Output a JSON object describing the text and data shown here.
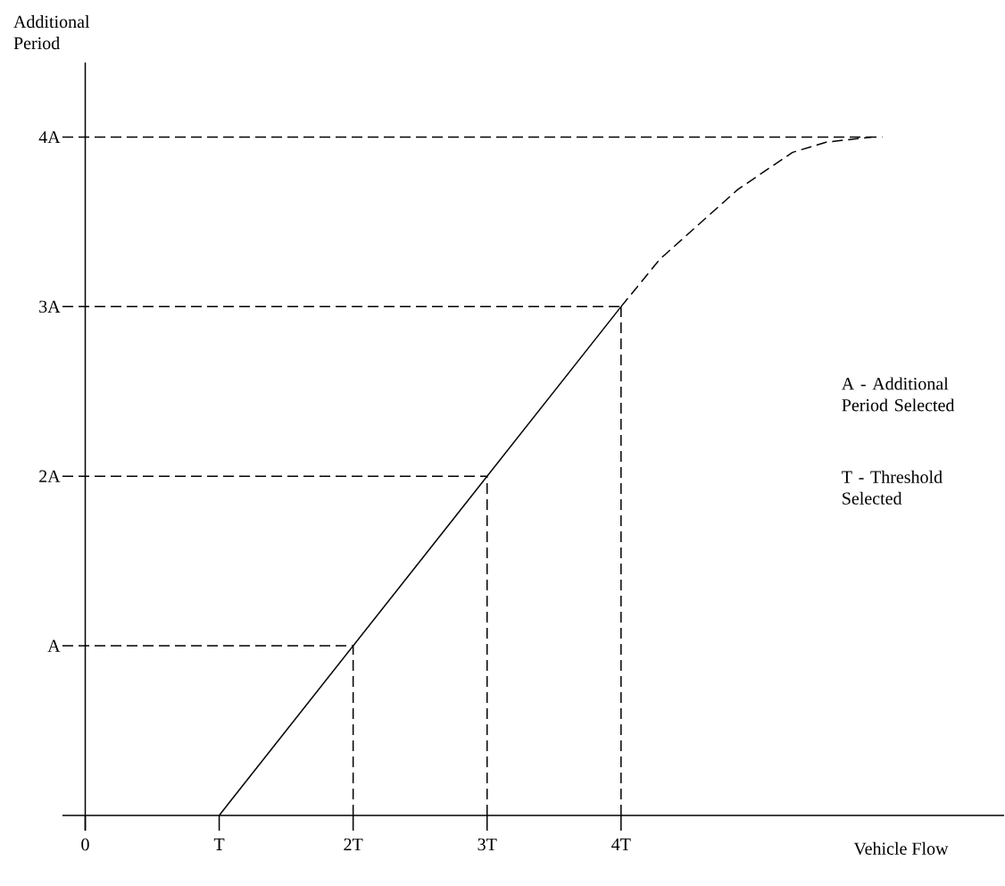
{
  "chart_data": {
    "type": "line",
    "xlabel": "Vehicle Flow",
    "ylabel": "Additional Period",
    "xlim": [
      -0.17,
      6.86
    ],
    "ylim": [
      -0.09,
      4.44
    ],
    "xticks": [
      0,
      {
        "value": 1,
        "label": "T"
      },
      {
        "value": 2,
        "label": "2T"
      },
      {
        "value": 3,
        "label": "3T"
      },
      {
        "value": 4,
        "label": "4T"
      }
    ],
    "yticks": [
      {
        "value": 1,
        "label": "A"
      },
      {
        "value": 2,
        "label": "2A"
      },
      {
        "value": 3,
        "label": "3A"
      },
      {
        "value": 4,
        "label": "4A"
      }
    ],
    "grid": false,
    "marker": "none",
    "series": [
      {
        "color": "#000000",
        "line_style": "solid",
        "x": [
          1,
          4
        ],
        "values": [
          0,
          3
        ]
      },
      {
        "color": "#000000",
        "line_style": "dashed",
        "x": [
          4,
          4.29,
          4.87,
          5.28,
          5.53,
          5.87
        ],
        "values": [
          3,
          3.28,
          3.69,
          3.91,
          3.97,
          4
        ]
      },
      {
        "color": "#000000",
        "line_style": "dashed",
        "x": [
          -0.17,
          2
        ],
        "values": [
          1,
          1
        ]
      },
      {
        "color": "#000000",
        "line_style": "dashed",
        "x": [
          -0.17,
          3
        ],
        "values": [
          2,
          2
        ]
      },
      {
        "color": "#000000",
        "line_style": "dashed",
        "x": [
          -0.17,
          4
        ],
        "values": [
          3,
          3
        ]
      },
      {
        "color": "#000000",
        "line_style": "dashed",
        "x": [
          -0.17,
          5.95
        ],
        "values": [
          4,
          4
        ]
      },
      {
        "color": "#000000",
        "line_style": "dashed",
        "x": [
          2,
          2
        ],
        "values": [
          0,
          1
        ]
      },
      {
        "color": "#000000",
        "line_style": "dashed",
        "x": [
          3,
          3
        ],
        "values": [
          0,
          2
        ]
      },
      {
        "color": "#000000",
        "line_style": "dashed",
        "x": [
          4,
          4
        ],
        "values": [
          0,
          3
        ]
      }
    ],
    "annotations": [
      "A - Additional Period Selected",
      "T - Threshold Selected"
    ]
  }
}
